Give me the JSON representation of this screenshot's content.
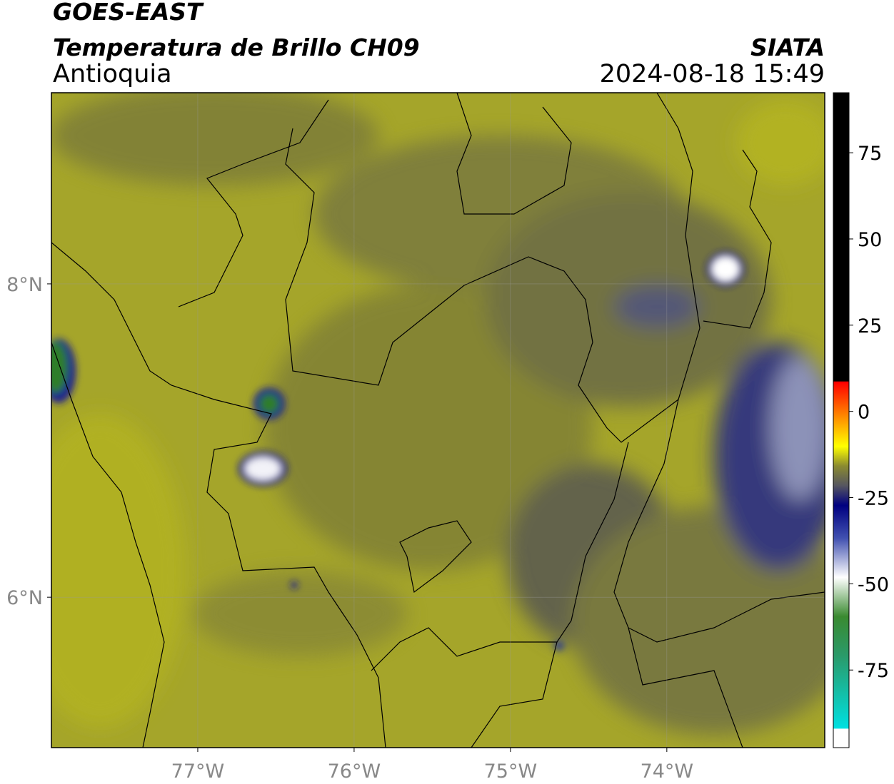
{
  "header": {
    "source": "GOES-EAST",
    "title": "Temperatura de Brillo CH09",
    "region": "Antioquia",
    "agency": "SIATA",
    "datetime": "2024-08-18 15:49"
  },
  "map": {
    "xlim": [
      -77.936,
      -72.99
    ],
    "ylim": [
      5.04,
      9.22
    ],
    "xticks": [
      {
        "value": -77,
        "label": "77°W"
      },
      {
        "value": -76,
        "label": "76°W"
      },
      {
        "value": -75,
        "label": "75°W"
      },
      {
        "value": -74,
        "label": "74°W"
      }
    ],
    "yticks": [
      {
        "value": 8,
        "label": "8°N"
      },
      {
        "value": 6,
        "label": "6°N"
      }
    ]
  },
  "colorbar": {
    "lim": [
      -97.5,
      92.4
    ],
    "ticks": [
      75,
      50,
      25,
      0,
      -25,
      -50,
      -75
    ]
  }
}
